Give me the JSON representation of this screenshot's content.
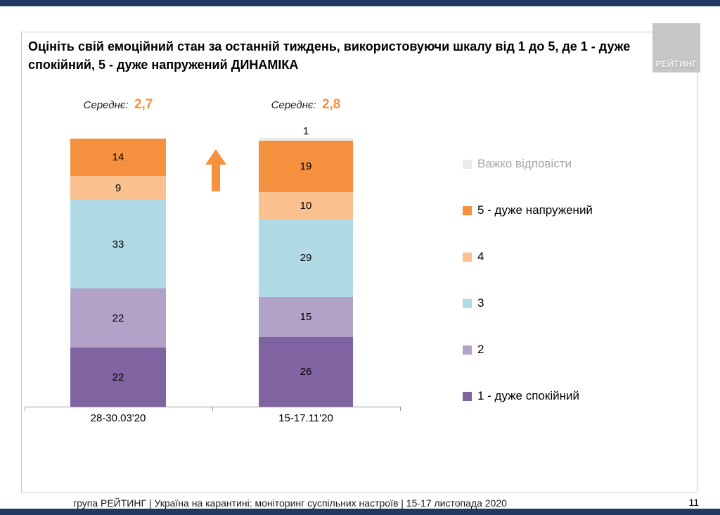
{
  "header": {
    "title": "Оцініть свій емоційний стан за останній тиждень, використовуючи шкалу від 1 до 5, де 1 - дуже спокійний, 5 - дуже напружений ДИНАМІКА",
    "logo_text": "РЕЙТИНГ"
  },
  "chart_data": {
    "type": "bar",
    "subtype": "stacked-column-percent",
    "title": "Оцініть свій емоційний стан за останній тиждень (шкала 1-5), ДИНАМІКА",
    "categories": [
      "28-30.03'20",
      "15-17.11'20"
    ],
    "series": [
      {
        "name": "1 - дуже спокійний",
        "color": "#8064A2",
        "values": [
          22,
          26
        ]
      },
      {
        "name": "2",
        "color": "#B3A2C7",
        "values": [
          22,
          15
        ]
      },
      {
        "name": "3",
        "color": "#B1DAE7",
        "values": [
          33,
          29
        ]
      },
      {
        "name": "4",
        "color": "#FAC090",
        "values": [
          9,
          10
        ]
      },
      {
        "name": "5 - дуже напружений",
        "color": "#F5913E",
        "values": [
          14,
          19
        ]
      },
      {
        "name": "Важко відповісти",
        "color": "#EBEBEB",
        "values": [
          0,
          1
        ]
      }
    ],
    "means": [
      {
        "label": "Середнє:",
        "value": "2,7"
      },
      {
        "label": "Середнє:",
        "value": "2,8"
      }
    ],
    "ylim": [
      0,
      100
    ],
    "units": "percent",
    "legend_position": "right",
    "annotations": [
      "orange increase arrow between columns"
    ]
  },
  "legend": [
    {
      "label": "Важко відповісти",
      "color": "#EBEBEB",
      "text_color": "#A6A6A6"
    },
    {
      "label": "5 - дуже напружений",
      "color": "#F5913E",
      "text_color": "#000000"
    },
    {
      "label": "4",
      "color": "#FAC090",
      "text_color": "#000000"
    },
    {
      "label": "3",
      "color": "#B1DAE7",
      "text_color": "#000000"
    },
    {
      "label": "2",
      "color": "#B3A2C7",
      "text_color": "#000000"
    },
    {
      "label": "1 - дуже спокійний",
      "color": "#8064A2",
      "text_color": "#000000"
    }
  ],
  "footer": {
    "text": "група РЕЙТИНГ | Україна на карантині: моніторинг суспільних настроїв | 15-17 листопада 2020",
    "page_number": "11"
  },
  "colors": {
    "accent_orange": "#F5913E",
    "navy": "#1F3864",
    "border_gray": "#C8C8C8"
  }
}
